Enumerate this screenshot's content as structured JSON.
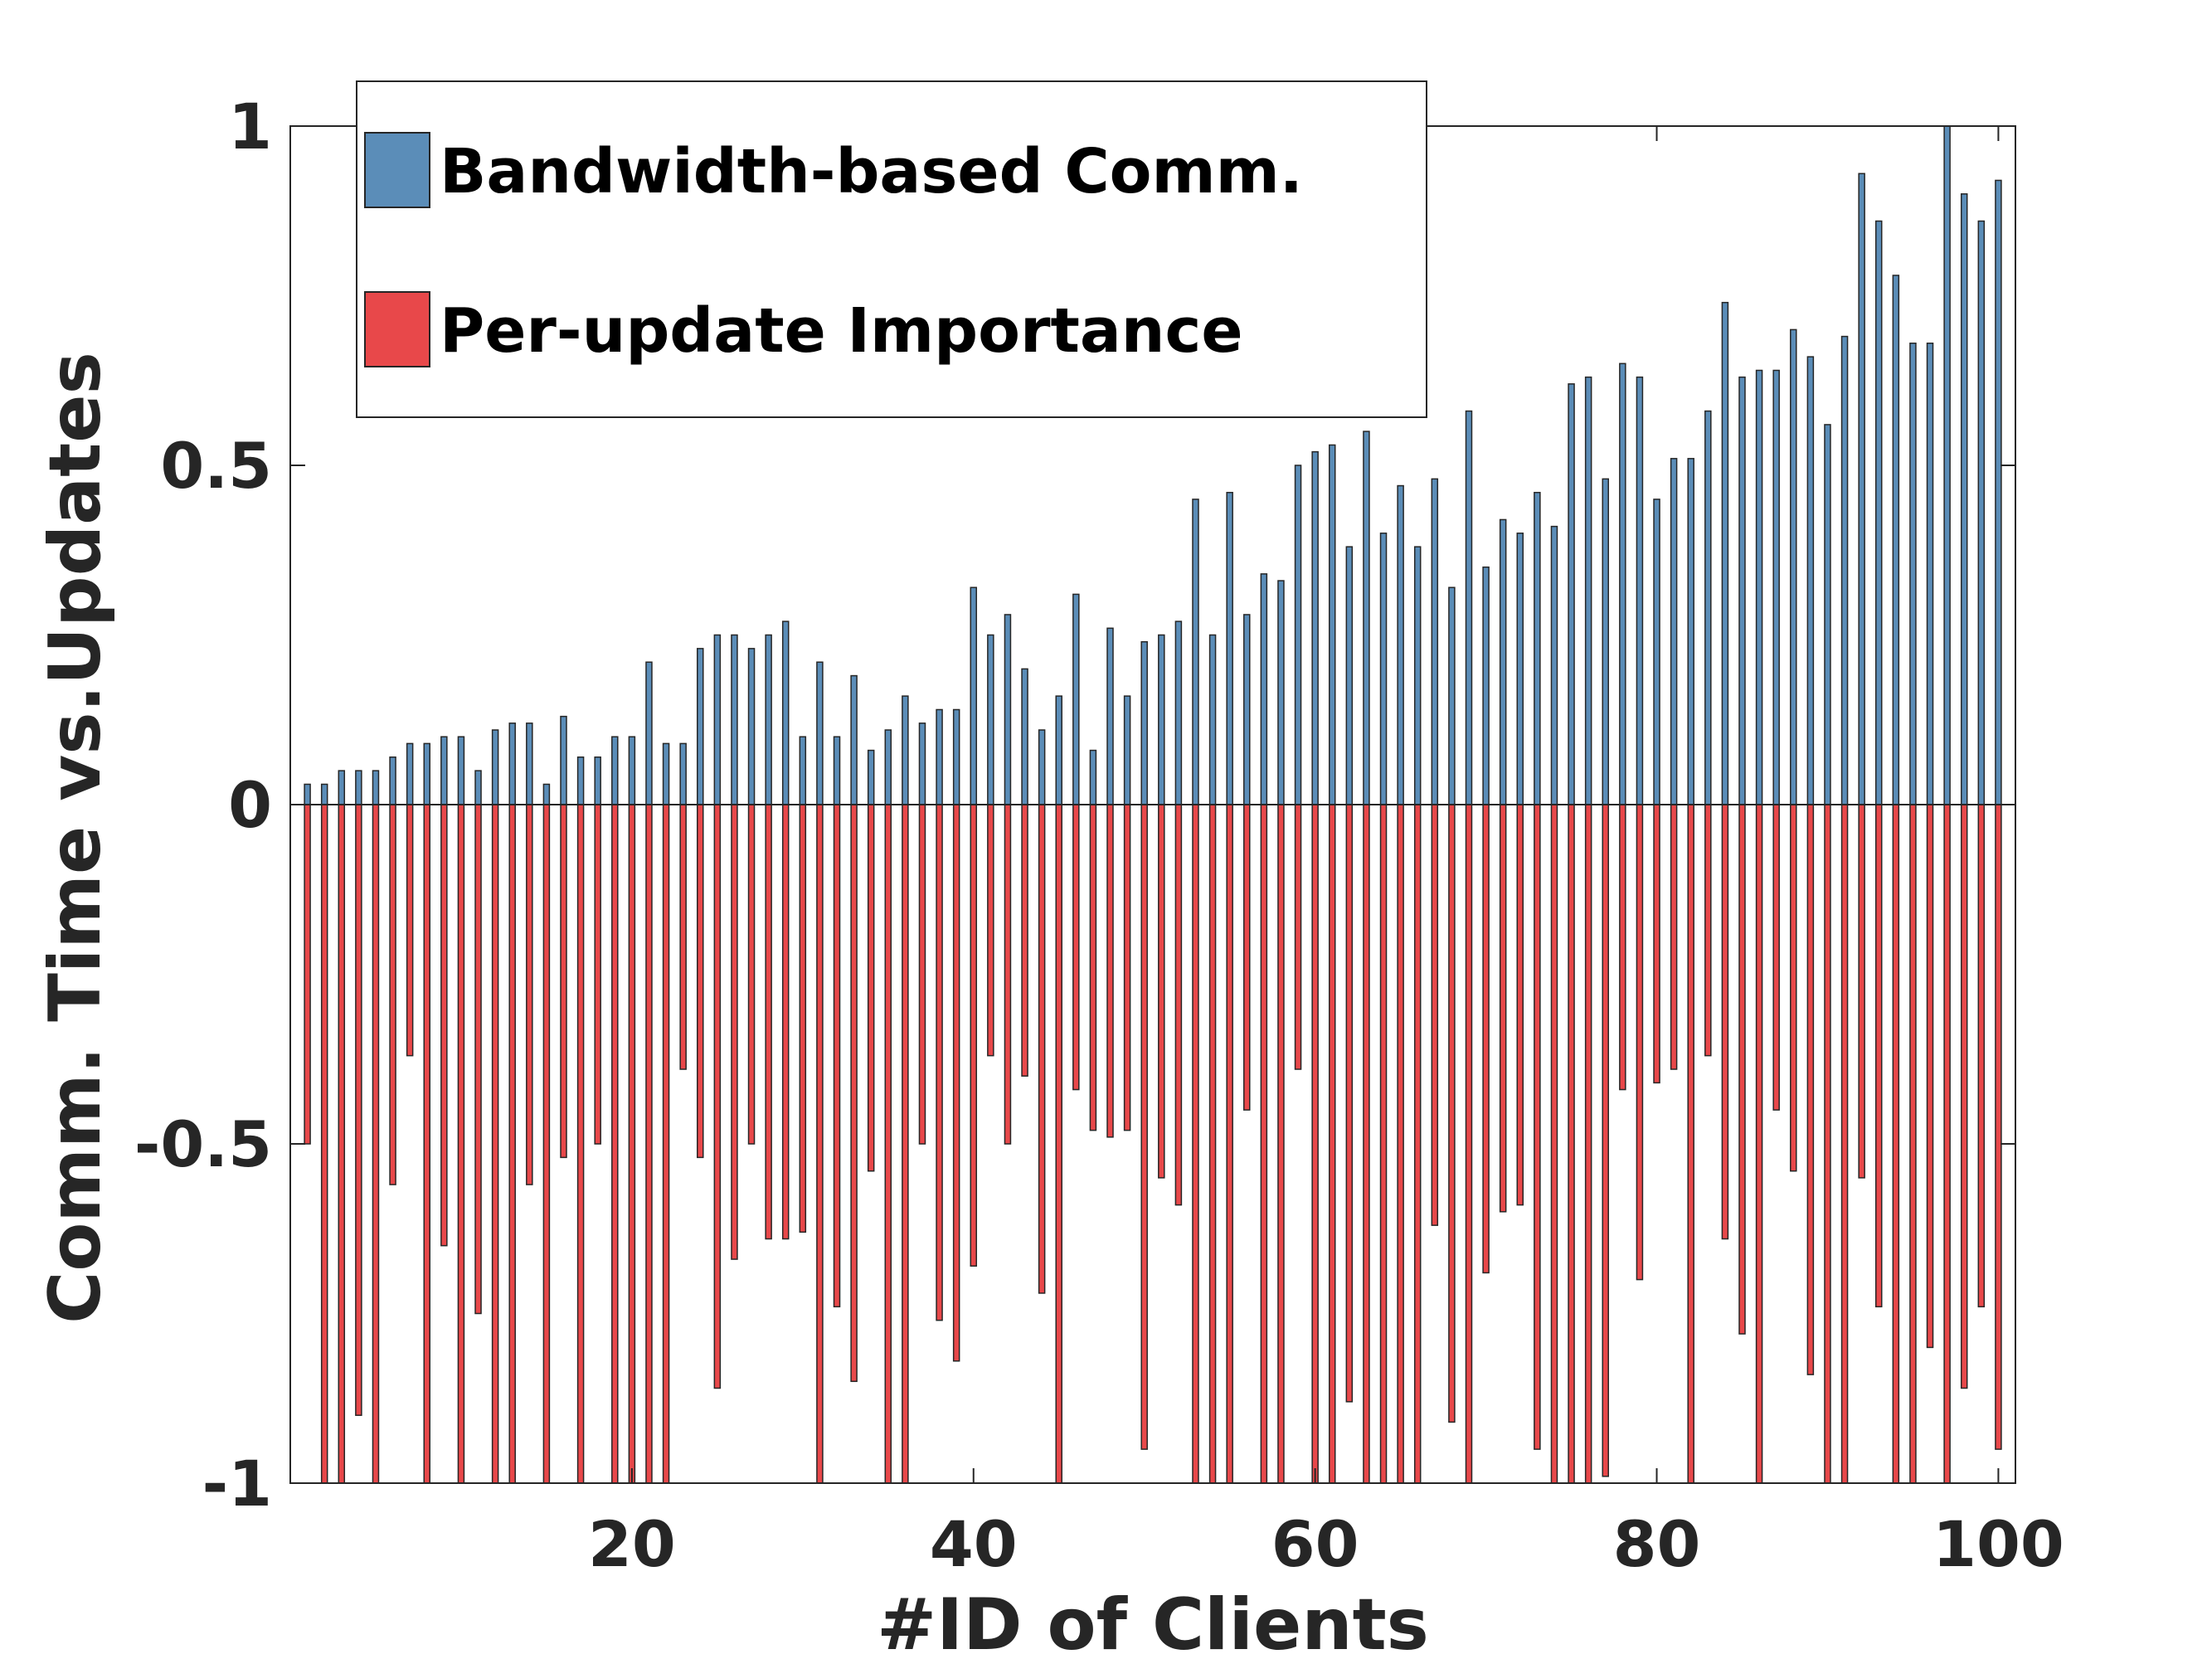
{
  "chart_data": {
    "type": "bar",
    "xlabel": "#ID of Clients",
    "ylabel": "Comm. Time vs.Updates",
    "xlim": [
      0,
      101
    ],
    "ylim": [
      -1,
      1
    ],
    "xticks": [
      20,
      40,
      60,
      80,
      100
    ],
    "xtick_labels": [
      "20",
      "40",
      "60",
      "80",
      "100"
    ],
    "yticks": [
      1,
      0.5,
      0,
      -0.5,
      -1
    ],
    "ytick_labels": [
      "1",
      "0.5",
      "0",
      "-0.5",
      "-1"
    ],
    "grid": false,
    "legend_position": "top-left",
    "x": [
      1,
      2,
      3,
      4,
      5,
      6,
      7,
      8,
      9,
      10,
      11,
      12,
      13,
      14,
      15,
      16,
      17,
      18,
      19,
      20,
      21,
      22,
      23,
      24,
      25,
      26,
      27,
      28,
      29,
      30,
      31,
      32,
      33,
      34,
      35,
      36,
      37,
      38,
      39,
      40,
      41,
      42,
      43,
      44,
      45,
      46,
      47,
      48,
      49,
      50,
      51,
      52,
      53,
      54,
      55,
      56,
      57,
      58,
      59,
      60,
      61,
      62,
      63,
      64,
      65,
      66,
      67,
      68,
      69,
      70,
      71,
      72,
      73,
      74,
      75,
      76,
      77,
      78,
      79,
      80,
      81,
      82,
      83,
      84,
      85,
      86,
      87,
      88,
      89,
      90,
      91,
      92,
      93,
      94,
      95,
      96,
      97,
      98,
      99,
      100
    ],
    "series": [
      {
        "name": "Bandwidth-based Comm.",
        "color": "#5b8db8",
        "values": [
          0.03,
          0.03,
          0.05,
          0.05,
          0.05,
          0.07,
          0.09,
          0.09,
          0.1,
          0.1,
          0.05,
          0.11,
          0.12,
          0.12,
          0.03,
          0.13,
          0.07,
          0.07,
          0.1,
          0.1,
          0.21,
          0.09,
          0.09,
          0.23,
          0.25,
          0.25,
          0.23,
          0.25,
          0.27,
          0.1,
          0.21,
          0.1,
          0.19,
          0.08,
          0.11,
          0.16,
          0.12,
          0.14,
          0.14,
          0.32,
          0.25,
          0.28,
          0.2,
          0.11,
          0.16,
          0.31,
          0.08,
          0.26,
          0.16,
          0.24,
          0.25,
          0.27,
          0.45,
          0.25,
          0.46,
          0.28,
          0.34,
          0.33,
          0.5,
          0.52,
          0.53,
          0.38,
          0.55,
          0.4,
          0.47,
          0.38,
          0.48,
          0.32,
          0.58,
          0.35,
          0.42,
          0.4,
          0.46,
          0.41,
          0.62,
          0.63,
          0.48,
          0.65,
          0.63,
          0.45,
          0.51,
          0.51,
          0.58,
          0.74,
          0.63,
          0.64,
          0.64,
          0.7,
          0.66,
          0.56,
          0.69,
          0.93,
          0.86,
          0.78,
          0.68,
          0.68,
          1.0,
          0.9,
          0.86,
          0.92
        ]
      },
      {
        "name": "Per-update Importance",
        "color": "#e8484a",
        "values": [
          -0.5,
          -1.0,
          -1.0,
          -0.9,
          -1.0,
          -0.56,
          -0.37,
          -1.0,
          -0.65,
          -1.0,
          -0.75,
          -1.0,
          -1.0,
          -0.56,
          -1.0,
          -0.52,
          -1.0,
          -0.5,
          -1.0,
          -1.0,
          -1.0,
          -1.0,
          -0.39,
          -0.52,
          -0.86,
          -0.67,
          -0.5,
          -0.64,
          -0.64,
          -0.63,
          -1.0,
          -0.74,
          -0.85,
          -0.54,
          -1.0,
          -1.0,
          -0.5,
          -0.76,
          -0.82,
          -0.68,
          -0.37,
          -0.5,
          -0.4,
          -0.72,
          -1.0,
          -0.42,
          -0.48,
          -0.49,
          -0.48,
          -0.95,
          -0.55,
          -0.59,
          -1.0,
          -1.0,
          -1.0,
          -0.45,
          -1.0,
          -1.0,
          -0.39,
          -1.0,
          -1.0,
          -0.88,
          -1.0,
          -1.0,
          -1.0,
          -1.0,
          -0.62,
          -0.91,
          -1.0,
          -0.69,
          -0.6,
          -0.59,
          -0.95,
          -1.0,
          -1.0,
          -1.0,
          -0.99,
          -0.42,
          -0.7,
          -0.41,
          -0.39,
          -1.0,
          -0.37,
          -0.64,
          -0.78,
          -1.0,
          -0.45,
          -0.54,
          -0.84,
          -1.0,
          -1.0,
          -0.55,
          -0.74,
          -1.0,
          -1.0,
          -0.8,
          -1.0,
          -0.86,
          -0.74,
          -0.95
        ]
      }
    ]
  }
}
